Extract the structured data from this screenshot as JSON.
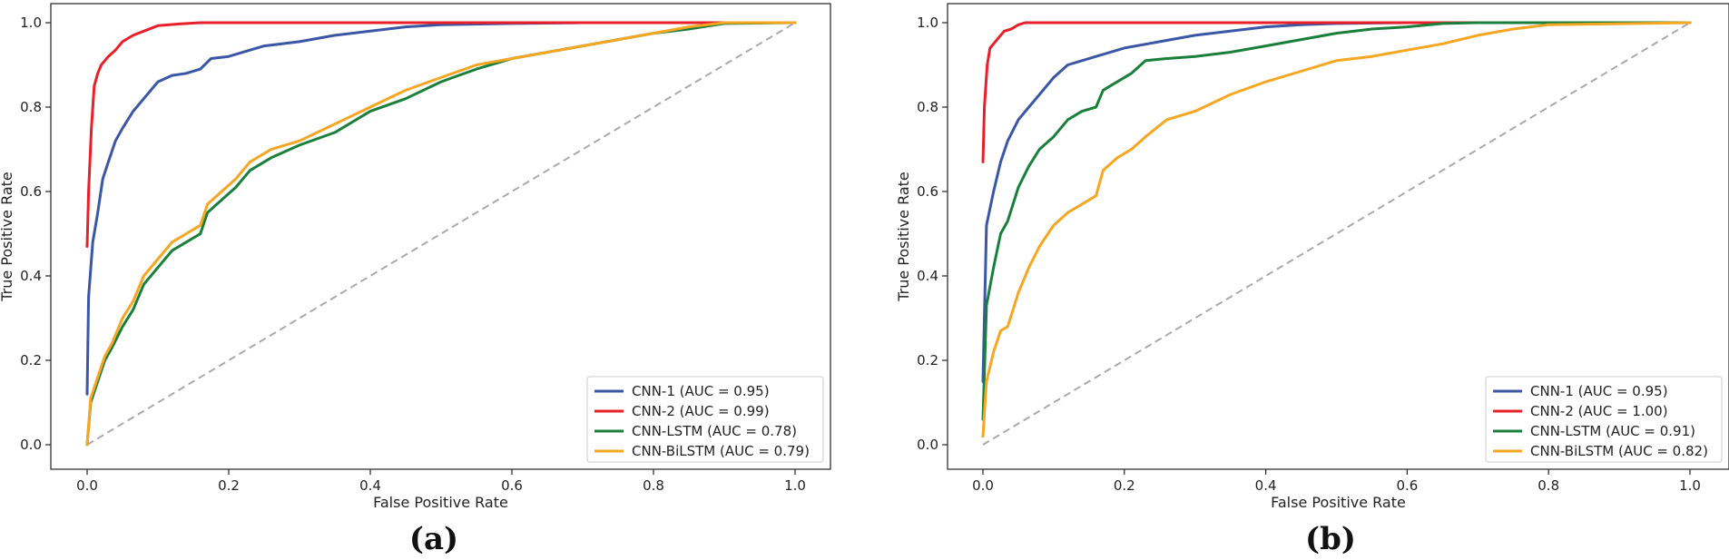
{
  "chart_data": [
    {
      "type": "line",
      "panel_label": "(a)",
      "xlabel": "False Positive Rate",
      "ylabel": "True Positive Rate",
      "xlim": [
        0,
        1
      ],
      "ylim": [
        0,
        1
      ],
      "xticks": [
        "0.0",
        "0.2",
        "0.4",
        "0.6",
        "0.8",
        "1.0"
      ],
      "yticks": [
        "0.0",
        "0.2",
        "0.4",
        "0.6",
        "0.8",
        "1.0"
      ],
      "grid": false,
      "legend_position": "lower-right",
      "diagonal": {
        "x": [
          0,
          1
        ],
        "y": [
          0,
          1
        ],
        "color": "#aaaaaa",
        "style": "dashed"
      },
      "series": [
        {
          "name": "CNN-1 (AUC = 0.95)",
          "color": "#3b56a4",
          "x": [
            0,
            0.002,
            0.008,
            0.015,
            0.022,
            0.03,
            0.04,
            0.05,
            0.065,
            0.08,
            0.1,
            0.12,
            0.14,
            0.16,
            0.175,
            0.2,
            0.25,
            0.3,
            0.35,
            0.4,
            0.45,
            0.5,
            0.6,
            0.7,
            0.8,
            0.9,
            1.0
          ],
          "y": [
            0.12,
            0.35,
            0.48,
            0.55,
            0.63,
            0.67,
            0.72,
            0.75,
            0.79,
            0.82,
            0.86,
            0.875,
            0.88,
            0.89,
            0.915,
            0.92,
            0.945,
            0.955,
            0.97,
            0.98,
            0.99,
            0.995,
            0.998,
            1.0,
            1.0,
            1.0,
            1.0
          ]
        },
        {
          "name": "CNN-2 (AUC = 0.99)",
          "color": "#e8202a",
          "x": [
            0,
            0.002,
            0.006,
            0.01,
            0.015,
            0.02,
            0.03,
            0.04,
            0.05,
            0.065,
            0.08,
            0.1,
            0.13,
            0.16,
            0.2,
            0.3,
            0.5,
            0.7,
            1.0
          ],
          "y": [
            0.47,
            0.6,
            0.75,
            0.85,
            0.88,
            0.9,
            0.92,
            0.935,
            0.955,
            0.97,
            0.98,
            0.993,
            0.997,
            1.0,
            1.0,
            1.0,
            1.0,
            1.0,
            1.0
          ]
        },
        {
          "name": "CNN-LSTM (AUC = 0.78)",
          "color": "#1b7f3c",
          "x": [
            0,
            0.005,
            0.015,
            0.025,
            0.035,
            0.05,
            0.065,
            0.08,
            0.1,
            0.12,
            0.14,
            0.16,
            0.17,
            0.19,
            0.21,
            0.23,
            0.26,
            0.3,
            0.35,
            0.4,
            0.45,
            0.5,
            0.55,
            0.6,
            0.7,
            0.8,
            0.85,
            0.9,
            1.0
          ],
          "y": [
            0.0,
            0.1,
            0.15,
            0.2,
            0.23,
            0.28,
            0.32,
            0.38,
            0.42,
            0.46,
            0.48,
            0.5,
            0.55,
            0.58,
            0.61,
            0.65,
            0.68,
            0.71,
            0.74,
            0.79,
            0.82,
            0.86,
            0.89,
            0.915,
            0.945,
            0.975,
            0.985,
            0.998,
            1.0
          ]
        },
        {
          "name": "CNN-BiLSTM (AUC = 0.79)",
          "color": "#f5a623",
          "x": [
            0,
            0.005,
            0.015,
            0.025,
            0.035,
            0.05,
            0.065,
            0.08,
            0.1,
            0.12,
            0.14,
            0.16,
            0.17,
            0.19,
            0.21,
            0.23,
            0.26,
            0.3,
            0.35,
            0.4,
            0.45,
            0.5,
            0.55,
            0.6,
            0.7,
            0.8,
            0.85,
            0.9,
            1.0
          ],
          "y": [
            0.0,
            0.11,
            0.16,
            0.21,
            0.24,
            0.3,
            0.34,
            0.4,
            0.44,
            0.48,
            0.5,
            0.52,
            0.57,
            0.6,
            0.63,
            0.67,
            0.7,
            0.72,
            0.76,
            0.8,
            0.84,
            0.87,
            0.9,
            0.915,
            0.945,
            0.975,
            0.99,
            1.0,
            1.0
          ]
        }
      ]
    },
    {
      "type": "line",
      "panel_label": "(b)",
      "xlabel": "False Positive Rate",
      "ylabel": "True Positive Rate",
      "xlim": [
        0,
        1
      ],
      "ylim": [
        0,
        1
      ],
      "xticks": [
        "0.0",
        "0.2",
        "0.4",
        "0.6",
        "0.8",
        "1.0"
      ],
      "yticks": [
        "0.0",
        "0.2",
        "0.4",
        "0.6",
        "0.8",
        "1.0"
      ],
      "grid": false,
      "legend_position": "lower-right",
      "diagonal": {
        "x": [
          0,
          1
        ],
        "y": [
          0,
          1
        ],
        "color": "#aaaaaa",
        "style": "dashed"
      },
      "series": [
        {
          "name": "CNN-1 (AUC = 0.95)",
          "color": "#3b56a4",
          "x": [
            0,
            0.005,
            0.015,
            0.025,
            0.035,
            0.05,
            0.065,
            0.08,
            0.1,
            0.12,
            0.14,
            0.16,
            0.2,
            0.25,
            0.3,
            0.35,
            0.4,
            0.45,
            0.5,
            0.6,
            0.7,
            0.8,
            1.0
          ],
          "y": [
            0.15,
            0.52,
            0.6,
            0.67,
            0.72,
            0.77,
            0.8,
            0.83,
            0.87,
            0.9,
            0.91,
            0.92,
            0.94,
            0.955,
            0.97,
            0.98,
            0.99,
            0.995,
            0.998,
            1.0,
            1.0,
            1.0,
            1.0
          ]
        },
        {
          "name": "CNN-2 (AUC = 1.00)",
          "color": "#e8202a",
          "x": [
            0,
            0.002,
            0.006,
            0.01,
            0.015,
            0.02,
            0.03,
            0.04,
            0.05,
            0.06,
            0.08,
            0.1,
            0.2,
            0.5,
            1.0
          ],
          "y": [
            0.67,
            0.8,
            0.9,
            0.94,
            0.95,
            0.96,
            0.98,
            0.985,
            0.995,
            1.0,
            1.0,
            1.0,
            1.0,
            1.0,
            1.0
          ]
        },
        {
          "name": "CNN-LSTM (AUC = 0.91)",
          "color": "#1b7f3c",
          "x": [
            0,
            0.005,
            0.015,
            0.025,
            0.035,
            0.05,
            0.065,
            0.08,
            0.1,
            0.12,
            0.14,
            0.16,
            0.17,
            0.19,
            0.21,
            0.23,
            0.26,
            0.3,
            0.35,
            0.4,
            0.45,
            0.5,
            0.55,
            0.6,
            0.65,
            0.7,
            0.8,
            0.85,
            1.0
          ],
          "y": [
            0.06,
            0.33,
            0.42,
            0.5,
            0.53,
            0.61,
            0.66,
            0.7,
            0.73,
            0.77,
            0.79,
            0.8,
            0.84,
            0.86,
            0.88,
            0.91,
            0.915,
            0.92,
            0.93,
            0.945,
            0.96,
            0.975,
            0.985,
            0.99,
            0.998,
            1.0,
            1.0,
            1.0,
            1.0
          ]
        },
        {
          "name": "CNN-BiLSTM (AUC = 0.82)",
          "color": "#f5a623",
          "x": [
            0,
            0.005,
            0.015,
            0.025,
            0.035,
            0.05,
            0.065,
            0.08,
            0.1,
            0.12,
            0.14,
            0.16,
            0.17,
            0.19,
            0.21,
            0.23,
            0.26,
            0.3,
            0.35,
            0.4,
            0.45,
            0.5,
            0.55,
            0.6,
            0.65,
            0.7,
            0.75,
            0.8,
            1.0
          ],
          "y": [
            0.02,
            0.15,
            0.22,
            0.27,
            0.28,
            0.36,
            0.42,
            0.47,
            0.52,
            0.55,
            0.57,
            0.59,
            0.65,
            0.68,
            0.7,
            0.73,
            0.77,
            0.79,
            0.83,
            0.86,
            0.885,
            0.91,
            0.92,
            0.935,
            0.95,
            0.97,
            0.985,
            0.995,
            1.0
          ]
        }
      ]
    }
  ]
}
